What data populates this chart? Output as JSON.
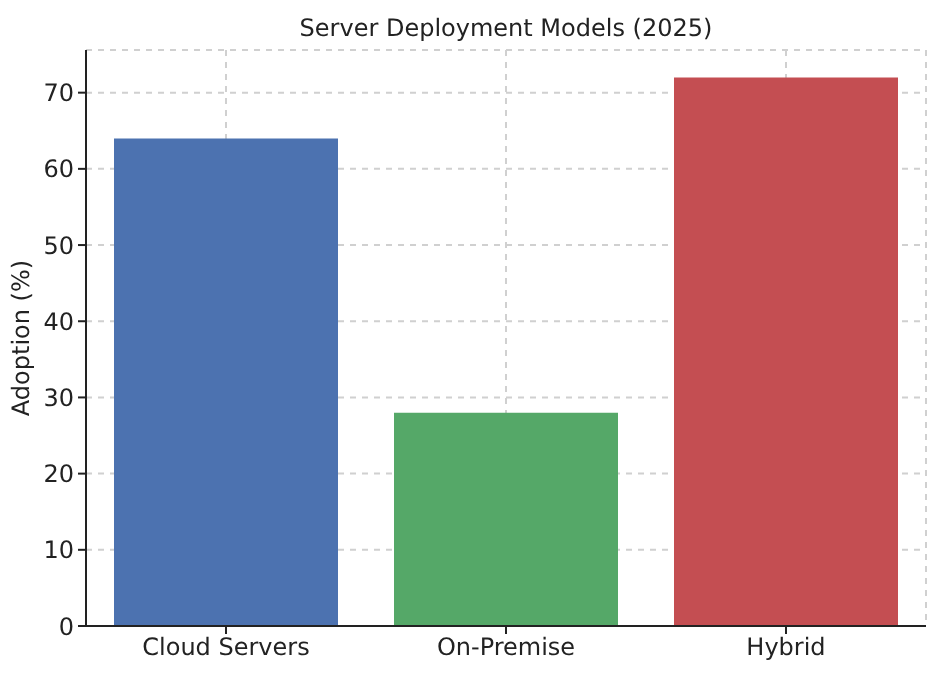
{
  "chart_data": {
    "type": "bar",
    "title": "Server Deployment Models (2025)",
    "ylabel": "Adoption (%)",
    "categories": [
      "Cloud Servers",
      "On-Premise",
      "Hybrid"
    ],
    "values": [
      64,
      28,
      72
    ],
    "colors": [
      "#4c72b0",
      "#55a868",
      "#c44e52"
    ],
    "ylim": [
      0,
      75.6
    ],
    "yticks": [
      0,
      10,
      20,
      30,
      40,
      50,
      60,
      70
    ],
    "grid": true
  }
}
